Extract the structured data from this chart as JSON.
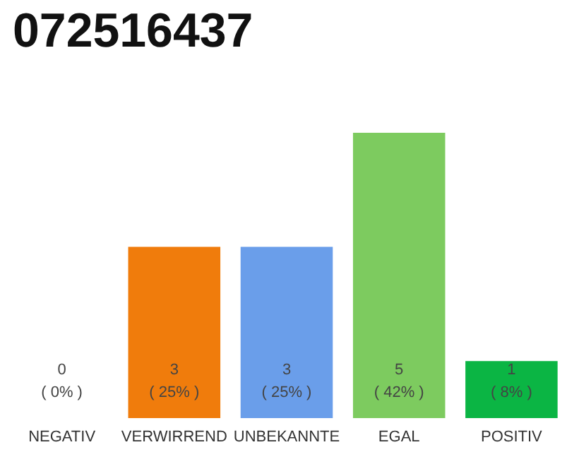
{
  "chart_data": {
    "type": "bar",
    "title": "072516437",
    "categories": [
      "NEGATIV",
      "VERWIRREND",
      "UNBEKANNTE",
      "EGAL",
      "POSITIV"
    ],
    "values": [
      0,
      3,
      3,
      5,
      1
    ],
    "colors": [
      "#9e9e9e",
      "#f07c0c",
      "#6a9eea",
      "#7dcb5f",
      "#0bb544"
    ],
    "value_labels": [
      "0\n( 0% )",
      "3\n( 25% )",
      "3\n( 25% )",
      "5\n( 42% )",
      "1\n( 8% )"
    ]
  }
}
